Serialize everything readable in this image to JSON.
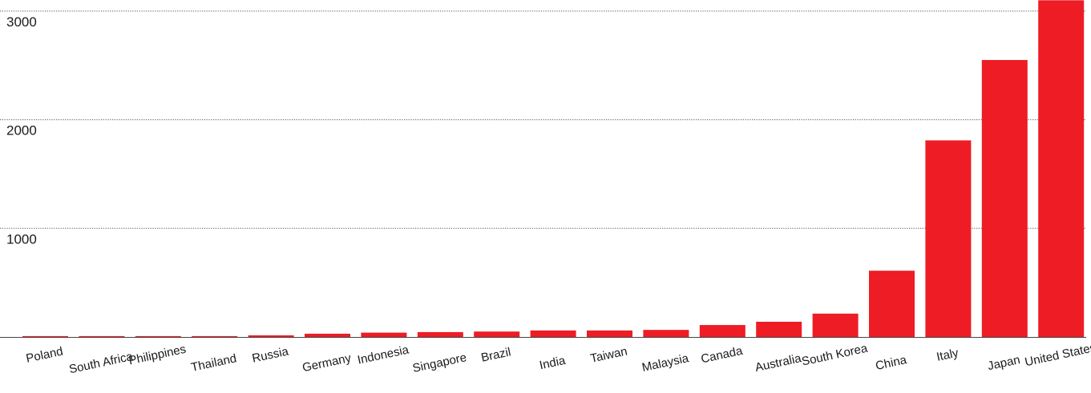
{
  "chart_data": {
    "type": "bar",
    "categories": [
      "Poland",
      "South Africa",
      "Philippines",
      "Thailand",
      "Russia",
      "Germany",
      "Indonesia",
      "Singapore",
      "Brazil",
      "India",
      "Taiwan",
      "Malaysia",
      "Canada",
      "Australia",
      "South Korea",
      "China",
      "Italy",
      "Japan",
      "United States"
    ],
    "values": [
      8,
      8,
      8,
      8,
      15,
      30,
      40,
      45,
      50,
      60,
      60,
      65,
      110,
      140,
      215,
      610,
      1810,
      2550,
      3100
    ],
    "title": "",
    "xlabel": "",
    "ylabel": "",
    "ylim": [
      0,
      3100
    ],
    "yticks": [
      1000,
      2000,
      3000
    ],
    "grid": true,
    "bar_color": "#ee1c25"
  }
}
